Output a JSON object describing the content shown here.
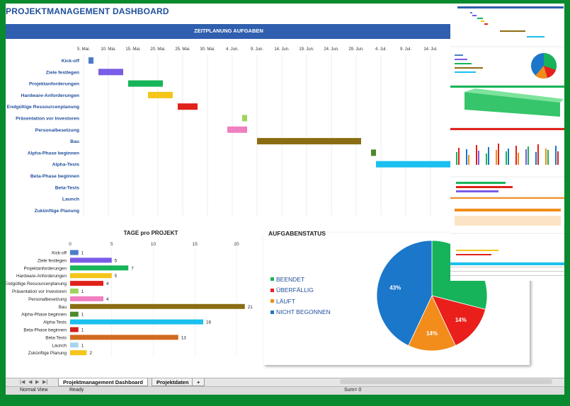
{
  "dashboard": {
    "title": "PROJEKTMANAGEMENT DASHBOARD",
    "gantt_title": "ZEITPLANUNG AUFGABEN",
    "days_title": "TAGE pro PROJEKT",
    "status_title": "AUFGABENSTATUS"
  },
  "tasks": [
    {
      "name": "Kick-off",
      "color": "#4a7cc9"
    },
    {
      "name": "Ziele festlegen",
      "color": "#7b5ce6"
    },
    {
      "name": "Projektanforderungen",
      "color": "#17b559"
    },
    {
      "name": "Hardware-Anforderungen",
      "color": "#f5c518"
    },
    {
      "name": "Endgültige Ressourcenplanung",
      "color": "#e0221b"
    },
    {
      "name": "Präsentation vor Investoren",
      "color": "#9fd45b"
    },
    {
      "name": "Personalbesetzung",
      "color": "#f080c0"
    },
    {
      "name": "Bau",
      "color": "#8a6d12"
    },
    {
      "name": "Alpha-Phase beginnen",
      "color": "#4d8a2a"
    },
    {
      "name": "Alpha-Tests",
      "color": "#1ac0ef"
    },
    {
      "name": "Beta-Phase beginnen",
      "color": "#d0201a"
    },
    {
      "name": "Beta-Tests",
      "color": "#d2691e"
    },
    {
      "name": "Launch",
      "color": "#a8d4f0"
    },
    {
      "name": "Zukünftige Planung",
      "color": "#f5c518"
    }
  ],
  "chart_data": [
    {
      "type": "bar",
      "title": "ZEITPLANUNG AUFGABEN",
      "orientation": "horizontal-gantt",
      "x_ticks": [
        "5. Mai.",
        "10. Mai.",
        "15. Mai.",
        "20. Mai.",
        "25. Mai.",
        "30. Mai.",
        "4. Jun.",
        "9. Jun.",
        "14. Jun.",
        "19. Jun.",
        "24. Jun.",
        "29. Jun.",
        "4. Jul.",
        "9. Jul.",
        "14. Jul."
      ],
      "categories": [
        "Kick-off",
        "Ziele festlegen",
        "Projektanforderungen",
        "Hardware-Anforderungen",
        "Endgültige Ressourcenplanung",
        "Präsentation vor Investoren",
        "Personalbesetzung",
        "Bau",
        "Alpha-Phase beginnen",
        "Alpha-Tests",
        "Beta-Phase beginnen",
        "Beta-Tests",
        "Launch",
        "Zukünftige Planung"
      ],
      "start_day_offset_from_5_mai": [
        1,
        3,
        9,
        13,
        19,
        32,
        29,
        35,
        58,
        59,
        null,
        null,
        null,
        null
      ],
      "duration_days": [
        1,
        5,
        7,
        5,
        4,
        1,
        4,
        21,
        1,
        16,
        1,
        13,
        1,
        2
      ]
    },
    {
      "type": "bar",
      "title": "TAGE pro PROJEKT",
      "orientation": "horizontal",
      "categories": [
        "Kick-off",
        "Ziele festlegen",
        "Projektanforderungen",
        "Hardware-Anforderungen",
        "Endgültige Ressourcenplanung",
        "Präsentation vor Investoren",
        "Personalbesetzung",
        "Bau",
        "Alpha-Phase beginnen",
        "Alpha-Tests",
        "Beta-Phase beginnen",
        "Beta-Tests",
        "Launch",
        "Zukünftige Planung"
      ],
      "values": [
        1,
        5,
        7,
        5,
        4,
        1,
        4,
        21,
        1,
        16,
        1,
        13,
        1,
        2
      ],
      "x_ticks": [
        0,
        5,
        10,
        15,
        20
      ],
      "xlim": [
        0,
        22
      ]
    },
    {
      "type": "pie",
      "title": "AUFGABENSTATUS",
      "labels": [
        "BEENDET",
        "ÜBERFÄLLIG",
        "LÄUFT",
        "NICHT BEGONNEN"
      ],
      "values": [
        29,
        14,
        14,
        43
      ],
      "value_labels": [
        "",
        "14%",
        "14%",
        "43%"
      ],
      "colors": [
        "#16b35a",
        "#ea1f1b",
        "#f28c1b",
        "#1b77c9"
      ],
      "legend_position": "left"
    }
  ],
  "tabs": [
    {
      "label": "Projektmanagement Dashboard"
    },
    {
      "label": "Projektdaten"
    },
    {
      "label": "+"
    }
  ],
  "status": {
    "view": "Normal View",
    "ready": "Ready",
    "sum": "Sum= 0"
  }
}
